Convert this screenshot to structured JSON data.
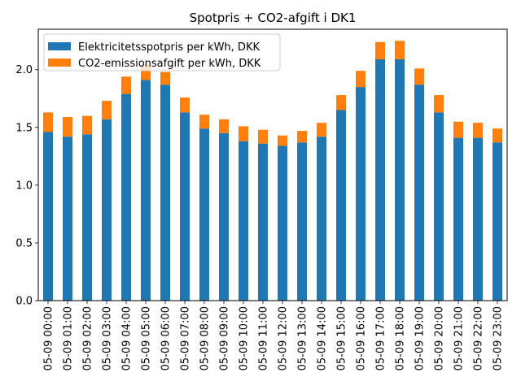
{
  "chart_data": {
    "type": "bar",
    "stacked": true,
    "title": "Spotpris + CO2-afgift i DK1",
    "xlabel": "",
    "ylabel": "",
    "ylim": [
      0,
      2.35
    ],
    "yticks": [
      "0.0",
      "0.5",
      "1.0",
      "1.5",
      "2.0"
    ],
    "legend_position": "top-left",
    "grid": false,
    "categories": [
      "05-09 00:00",
      "05-09 01:00",
      "05-09 02:00",
      "05-09 03:00",
      "05-09 04:00",
      "05-09 05:00",
      "05-09 06:00",
      "05-09 07:00",
      "05-09 08:00",
      "05-09 09:00",
      "05-09 10:00",
      "05-09 11:00",
      "05-09 12:00",
      "05-09 13:00",
      "05-09 14:00",
      "05-09 15:00",
      "05-09 16:00",
      "05-09 17:00",
      "05-09 18:00",
      "05-09 19:00",
      "05-09 20:00",
      "05-09 21:00",
      "05-09 22:00",
      "05-09 23:00"
    ],
    "series": [
      {
        "name": "Elektricitetsspotpris per kWh, DKK",
        "color": "#1f77b4",
        "values": [
          1.46,
          1.42,
          1.44,
          1.57,
          1.79,
          1.91,
          1.87,
          1.63,
          1.49,
          1.45,
          1.38,
          1.36,
          1.34,
          1.37,
          1.42,
          1.65,
          1.85,
          2.09,
          2.09,
          1.87,
          1.63,
          1.41,
          1.41,
          1.37
        ]
      },
      {
        "name": "CO2-emissionsafgift per kWh, DKK",
        "color": "#ff7f0e",
        "values": [
          0.17,
          0.17,
          0.16,
          0.16,
          0.15,
          0.14,
          0.11,
          0.13,
          0.12,
          0.12,
          0.13,
          0.12,
          0.09,
          0.1,
          0.12,
          0.13,
          0.14,
          0.15,
          0.16,
          0.14,
          0.15,
          0.14,
          0.13,
          0.12
        ]
      }
    ]
  }
}
